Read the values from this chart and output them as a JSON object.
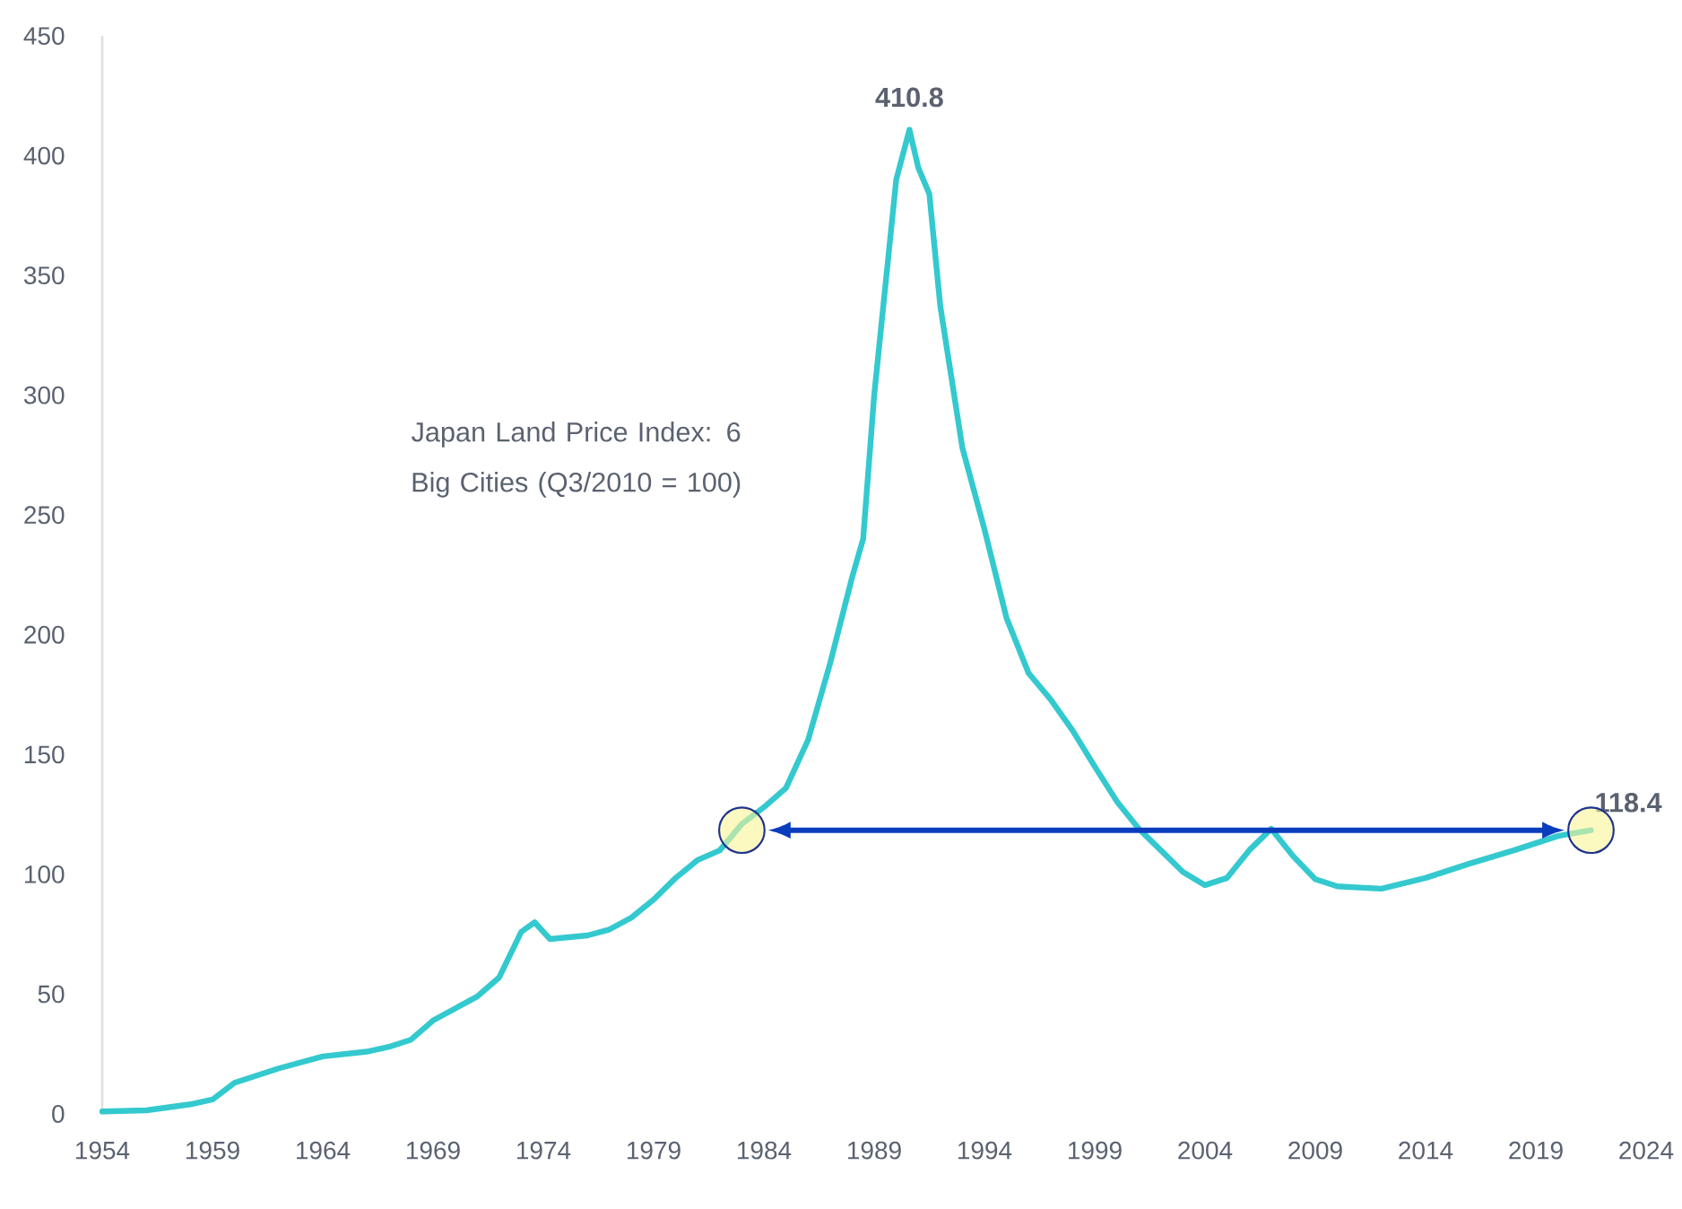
{
  "chart_data": {
    "type": "line",
    "title": "Japan Land Price Index: 6 Big Cities (Q3/2010 = 100)",
    "x": [
      1954,
      1956,
      1958,
      1959,
      1960,
      1962,
      1964,
      1966,
      1967,
      1968,
      1969,
      1970,
      1971,
      1972,
      1973,
      1973.6,
      1974.3,
      1976,
      1977,
      1978,
      1979,
      1980,
      1981,
      1982,
      1983,
      1984,
      1985,
      1986,
      1987,
      1988,
      1988.5,
      1989,
      1990,
      1990.6,
      1991,
      1991.5,
      1992,
      1993,
      1994,
      1995,
      1996,
      1997,
      1998,
      1999,
      2000,
      2001,
      2002,
      2003,
      2004,
      2005,
      2006,
      2007,
      2008,
      2009,
      2010,
      2012,
      2014,
      2016,
      2018,
      2020,
      2021.5
    ],
    "series": [
      {
        "color": "#33c9cf",
        "values": [
          1,
          1.5,
          4,
          6,
          13,
          19,
          24,
          26,
          28,
          31,
          39,
          44,
          49,
          57,
          76,
          80,
          73,
          74.5,
          77,
          82,
          89.5,
          98.5,
          106,
          110,
          121,
          128,
          136,
          156,
          188,
          224,
          240,
          300,
          390,
          410.8,
          395,
          384,
          337,
          278,
          244,
          207,
          184,
          173,
          160,
          145,
          130.5,
          119,
          110,
          101,
          95.5,
          98.5,
          110,
          119,
          107.5,
          98,
          95,
          94,
          98.5,
          104.5,
          110,
          116,
          118.4
        ]
      },
      {
        "type": "scatter",
        "color": "#faf596",
        "x": [
          1983,
          2021.5
        ],
        "values": [
          118.4,
          118.4
        ]
      }
    ],
    "xlim": [
      1954,
      2024
    ],
    "xticks": [
      1954,
      1959,
      1964,
      1969,
      1974,
      1979,
      1984,
      1989,
      1994,
      1999,
      2004,
      2009,
      2014,
      2019,
      2024
    ],
    "ylim": [
      0,
      450
    ],
    "yticks": [
      0,
      50,
      100,
      150,
      200,
      250,
      300,
      350,
      400,
      450
    ],
    "annotations": [
      {
        "text": "410.8",
        "x": 1990.6,
        "y": 410.8
      },
      {
        "text": "118.4",
        "x": 2021.5,
        "y": 118.4
      }
    ],
    "grid": false,
    "legend": false,
    "marker": "none",
    "line_style": "solid"
  }
}
